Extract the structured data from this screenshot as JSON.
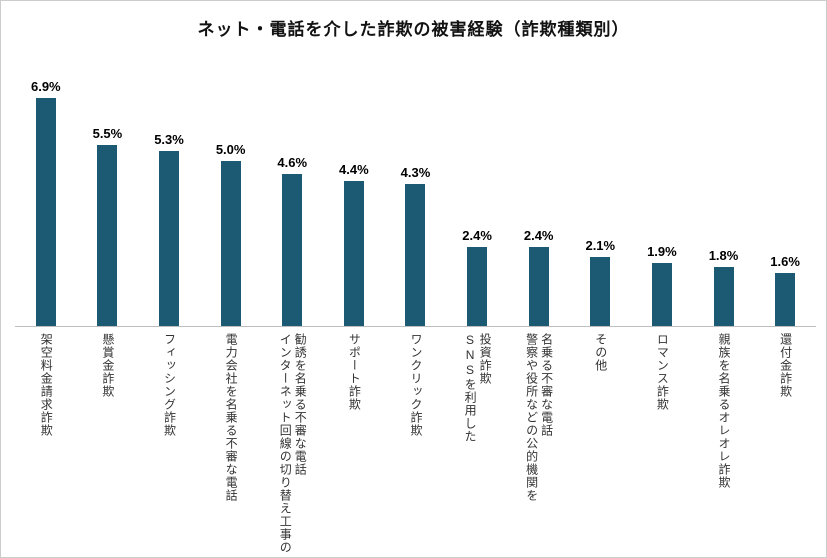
{
  "chart_data": {
    "type": "bar",
    "title": "ネット・電話を介した詐欺の被害経験（詐欺種類別）",
    "categories": [
      "架空料金請求詐欺",
      "懸賞金詐欺",
      "フィッシング詐欺",
      "電力会社を名乗る不審な電話",
      "インターネット回線の切り替え工事の\n勧誘を名乗る不審な電話",
      "サポート詐欺",
      "ワンクリック詐欺",
      "SNSを利用した\n投資詐欺",
      "警察や役所などの公的機関を\n名乗る不審な電話",
      "その他",
      "ロマンス詐欺",
      "親族を名乗るオレオレ詐欺",
      "還付金詐欺"
    ],
    "values": [
      6.9,
      5.5,
      5.3,
      5.0,
      4.6,
      4.4,
      4.3,
      2.4,
      2.4,
      2.1,
      1.9,
      1.8,
      1.6
    ],
    "value_labels": [
      "6.9%",
      "5.5%",
      "5.3%",
      "5.0%",
      "4.6%",
      "4.4%",
      "4.3%",
      "2.4%",
      "2.4%",
      "2.1%",
      "1.9%",
      "1.8%",
      "1.6%"
    ],
    "bar_color": "#1b5a72",
    "xlabel": "",
    "ylabel": "",
    "ylim": [
      0,
      7.5
    ],
    "grid": false,
    "legend": "none"
  }
}
